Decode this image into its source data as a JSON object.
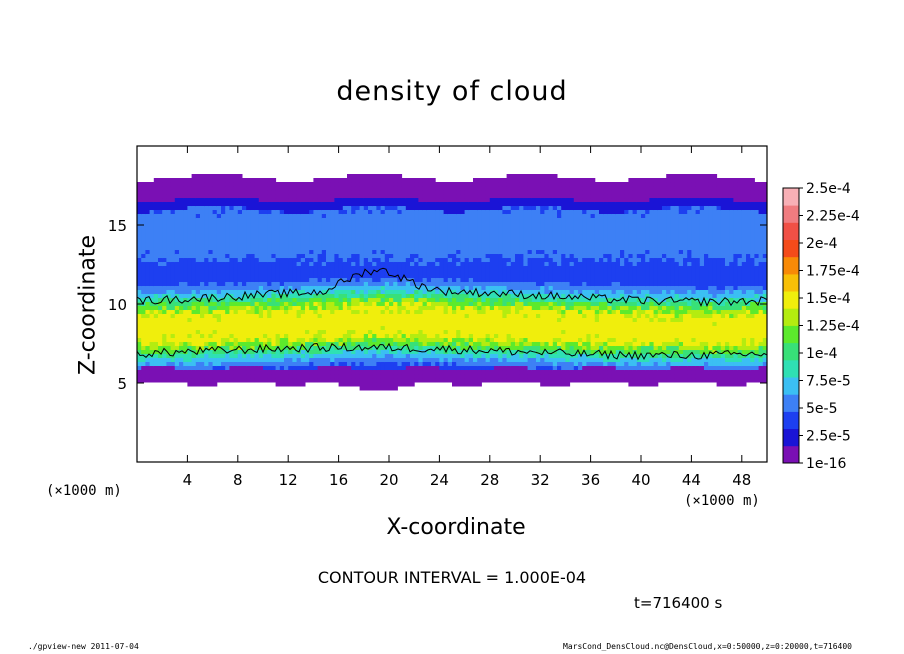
{
  "chart_data": {
    "type": "heatmap",
    "title": "density of cloud",
    "xlabel": "X-coordinate",
    "ylabel": "Z-coordinate",
    "x_unit": "(×1000 m)",
    "z_unit": "(×1000 m)",
    "xlim": [
      0,
      50
    ],
    "ylim": [
      0,
      20
    ],
    "x_ticks": [
      4,
      8,
      12,
      16,
      20,
      24,
      28,
      32,
      36,
      40,
      44,
      48
    ],
    "y_ticks": [
      5,
      10,
      15
    ],
    "contour_note": "CONTOUR INTERVAL = 1.000E-04",
    "time_label": "t=716400 s",
    "colorbar": {
      "labels": [
        "1e-16",
        "2.5e-5",
        "5e-5",
        "7.5e-5",
        "1e-4",
        "1.25e-4",
        "1.5e-4",
        "1.75e-4",
        "2e-4",
        "2.25e-4",
        "2.5e-4"
      ],
      "values": [
        1e-16,
        2.5e-05,
        5e-05,
        7.5e-05,
        0.0001,
        0.000125,
        0.00015,
        0.000175,
        0.0002,
        0.000225,
        0.00025
      ],
      "colors": [
        "#7a10b4",
        "#1a14d6",
        "#1d3ff0",
        "#3d80f5",
        "#3bbff3",
        "#2fe0b4",
        "#38e078",
        "#5cea2c",
        "#b4ec10",
        "#f0ee0c",
        "#f8c007",
        "#f88a07",
        "#f44b1a",
        "#f05046",
        "#f07c80",
        "#f8b0b6"
      ]
    },
    "cloud_layer": {
      "bottom_z": 5.0,
      "top_z": 18.0,
      "dense_core_z": [
        7.0,
        10.5
      ],
      "peak_density": 0.00016,
      "contour_levels": [
        0.0001
      ]
    }
  },
  "footer": {
    "left": "./gpview-new  2011-07-04",
    "right": "MarsCond_DensCloud.nc@DensCloud,x=0:50000,z=0:20000,t=716400"
  }
}
